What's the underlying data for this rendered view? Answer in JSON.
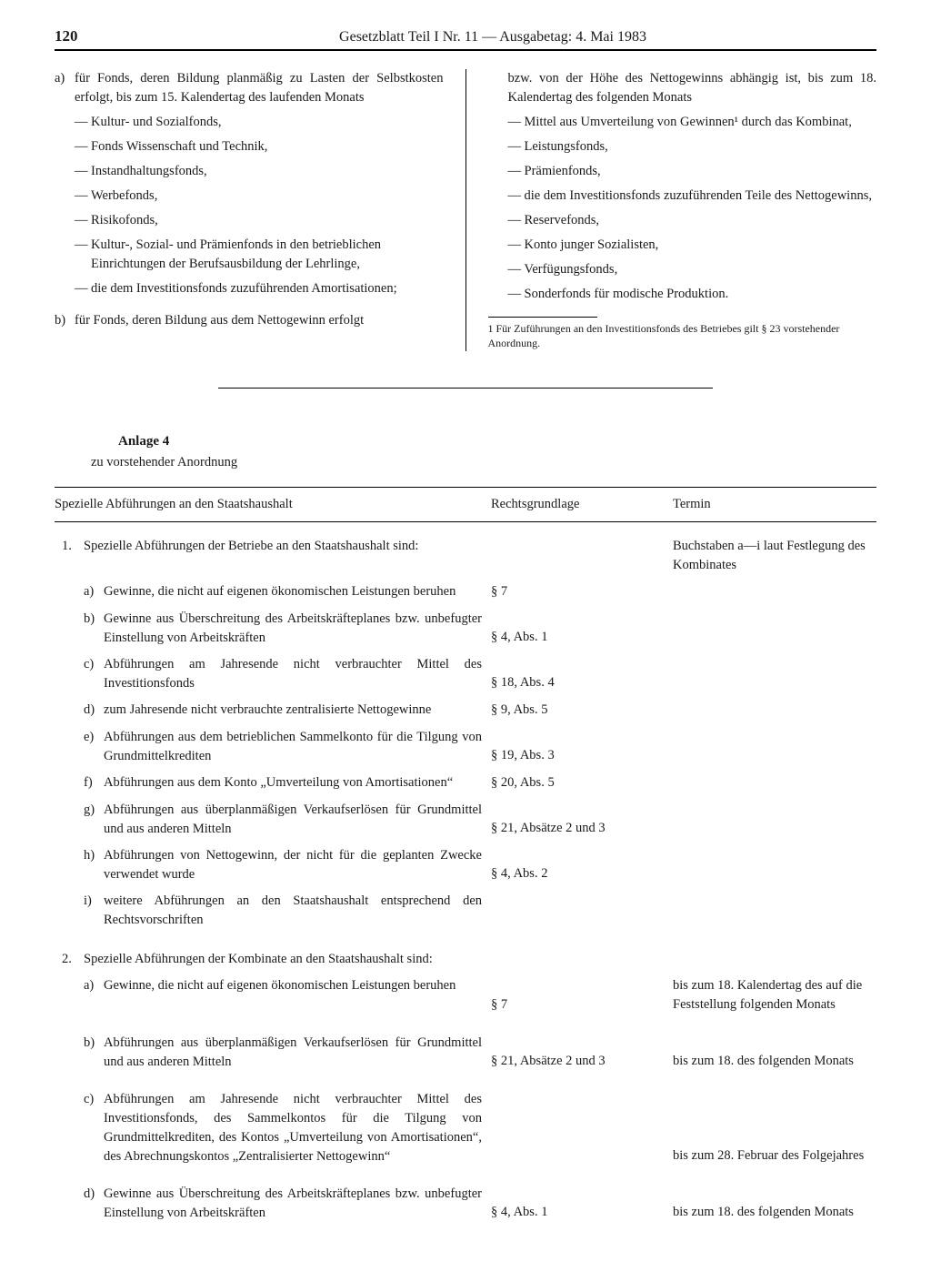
{
  "header": {
    "page_number": "120",
    "title": "Gesetzblatt Teil I Nr. 11 — Ausgabetag: 4. Mai 1983"
  },
  "left_column": {
    "item_a_intro": "für Fonds, deren Bildung planmäßig zu Lasten der Selbstkosten erfolgt, bis zum 15. Kalendertag des laufenden Monats",
    "a_list": [
      "Kultur- und Sozialfonds,",
      "Fonds Wissenschaft und Technik,",
      "Instandhaltungsfonds,",
      "Werbefonds,",
      "Risikofonds,",
      "Kultur-, Sozial- und Prämienfonds in den betrieblichen Einrichtungen der Berufsausbildung der Lehrlinge,",
      "die dem Investitionsfonds zuzuführenden Amortisationen;"
    ],
    "item_b": "für Fonds, deren Bildung aus dem Nettogewinn erfolgt"
  },
  "right_column": {
    "cont": "bzw. von der Höhe des Nettogewinns abhängig ist, bis zum 18. Kalendertag des folgenden Monats",
    "b_list": [
      "Mittel aus Umverteilung von Gewinnen¹ durch das Kombinat,",
      "Leistungsfonds,",
      "Prämienfonds,",
      "die dem Investitionsfonds zuzuführenden Teile des Nettogewinns,",
      "Reservefonds,",
      "Konto junger Sozialisten,",
      "Verfügungsfonds,",
      "Sonderfonds für modische Produktion."
    ],
    "footnote": "1 Für Zuführungen an den Investitionsfonds des Betriebes gilt § 23 vorstehender Anordnung."
  },
  "anlage": {
    "title": "Anlage 4",
    "sub": "zu vorstehender Anordnung"
  },
  "table": {
    "headers": {
      "c1": "Spezielle Abführungen an den Staatshaushalt",
      "c2": "Rechtsgrundlage",
      "c3": "Termin"
    },
    "section1": {
      "num": "1.",
      "text": "Spezielle Abführungen der Betriebe an den Staatshaushalt sind:",
      "term": "Buchstaben a—i laut Festlegung des Kombinates",
      "rows": [
        {
          "l": "a)",
          "t": "Gewinne, die nicht auf eigenen ökonomischen Leistungen beruhen",
          "b": "§ 7",
          "r": ""
        },
        {
          "l": "b)",
          "t": "Gewinne aus Überschreitung des Arbeitskräfteplanes bzw. unbefugter Einstellung von Arbeitskräften",
          "b": "§ 4, Abs. 1",
          "r": ""
        },
        {
          "l": "c)",
          "t": "Abführungen am Jahresende nicht verbrauchter Mittel des Investitionsfonds",
          "b": "§ 18, Abs. 4",
          "r": ""
        },
        {
          "l": "d)",
          "t": "zum Jahresende nicht verbrauchte zentralisierte Nettogewinne",
          "b": "§ 9, Abs. 5",
          "r": ""
        },
        {
          "l": "e)",
          "t": "Abführungen aus dem betrieblichen Sammelkonto für die Tilgung von Grundmittelkrediten",
          "b": "§ 19, Abs. 3",
          "r": ""
        },
        {
          "l": "f)",
          "t": "Abführungen aus dem Konto „Umverteilung von Amortisationen“",
          "b": "§ 20, Abs. 5",
          "r": ""
        },
        {
          "l": "g)",
          "t": "Abführungen aus überplanmäßigen Verkaufserlösen für Grundmittel und aus anderen Mitteln",
          "b": "§ 21, Absätze 2 und 3",
          "r": ""
        },
        {
          "l": "h)",
          "t": "Abführungen von Nettogewinn, der nicht für die geplanten Zwecke verwendet wurde",
          "b": "§ 4, Abs. 2",
          "r": ""
        },
        {
          "l": "i)",
          "t": "weitere Abführungen an den Staatshaushalt entsprechend den Rechtsvorschriften",
          "b": "",
          "r": ""
        }
      ]
    },
    "section2": {
      "num": "2.",
      "text": "Spezielle Abführungen der Kombinate an den Staatshaushalt sind:",
      "rows": [
        {
          "l": "a)",
          "t": "Gewinne, die nicht auf eigenen ökonomischen Leistungen beruhen",
          "b": "§ 7",
          "r": "bis zum 18. Kalendertag des auf die Feststellung folgenden Monats"
        },
        {
          "l": "b)",
          "t": "Abführungen aus überplanmäßigen Verkaufserlösen für Grundmittel und aus anderen Mitteln",
          "b": "§ 21, Absätze 2 und 3",
          "r": "bis zum 18. des folgenden Monats"
        },
        {
          "l": "c)",
          "t": "Abführungen am Jahresende nicht verbrauchter Mittel des Investitionsfonds, des Sammelkontos für die Tilgung von Grundmittelkrediten, des Kontos „Umverteilung von Amortisationen“, des Abrechnungskontos „Zentralisierter Nettogewinn“",
          "b": "",
          "r": "bis zum 28. Februar des Folgejahres"
        },
        {
          "l": "d)",
          "t": "Gewinne aus Überschreitung des Arbeitskräfteplanes bzw. unbefugter Einstellung von Arbeitskräften",
          "b": "§ 4, Abs. 1",
          "r": "bis zum 18. des folgenden Monats"
        }
      ]
    }
  }
}
